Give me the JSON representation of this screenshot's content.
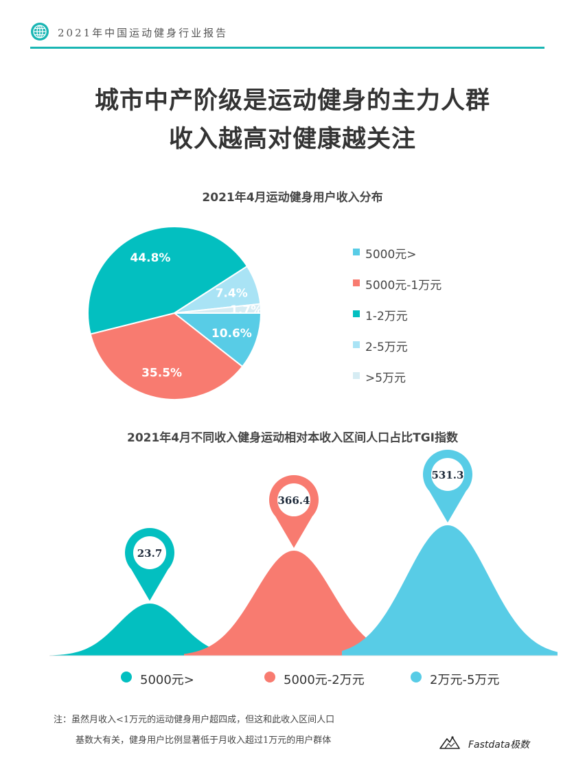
{
  "header": {
    "title": "2021年中国运动健身行业报告",
    "icon": "globe-icon"
  },
  "main_title": {
    "line1": "城市中产阶级是运动健身的主力人群",
    "line2": "收入越高对健康越关注"
  },
  "colors": {
    "teal": "#03bfc0",
    "coral": "#f87b70",
    "sky": "#58cce6",
    "light_blue": "#a9e3f5",
    "pale_blue": "#d6ecf3",
    "rule": "#19b5b3"
  },
  "chart_data": [
    {
      "type": "pie",
      "title": "2021年4月运动健身用户收入分布",
      "slices": [
        {
          "label": "5000元>",
          "value": 10.6,
          "display": "10.6%",
          "color": "#58cce6"
        },
        {
          "label": "5000元-1万元",
          "value": 35.5,
          "display": "35.5%",
          "color": "#f87b70"
        },
        {
          "label": "1-2万元",
          "value": 44.8,
          "display": "44.8%",
          "color": "#03bfc0"
        },
        {
          "label": "2-5万元",
          "value": 7.4,
          "display": "7.4%",
          "color": "#a9e3f5"
        },
        {
          "label": ">5万元",
          "value": 1.7,
          "display": "1.7%",
          "color": "#d6ecf3"
        }
      ],
      "legend_position": "right"
    },
    {
      "type": "area",
      "title": "2021年4月不同收入健身运动相对本收入区间人口占比TGI指数",
      "categories": [
        "5000元>",
        "5000元-2万元",
        "2万元-5万元"
      ],
      "values": [
        23.7,
        366.4,
        531.3
      ],
      "display_values": [
        "23.7",
        "366.4",
        "531.3"
      ],
      "colors": [
        "#03bfc0",
        "#f87b70",
        "#58cce6"
      ],
      "legend_position": "bottom"
    }
  ],
  "footnote": {
    "line1": "注：虽然月收入<1万元的运动健身用户超四成，但这和此收入区间人口",
    "line2": "基数大有关，健身用户比例显著低于月收入超过1万元的用户群体"
  },
  "brand": {
    "text": "Fastdata极数",
    "icon": "mountain-logo-icon"
  }
}
